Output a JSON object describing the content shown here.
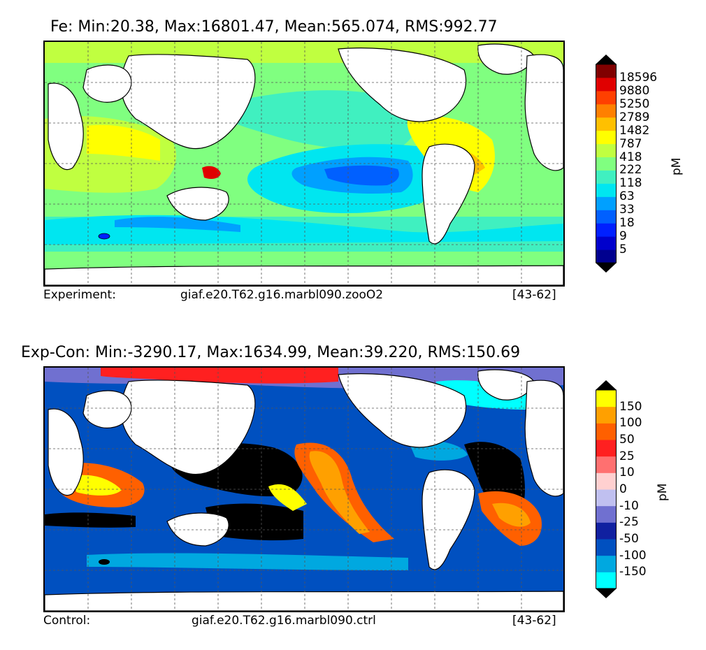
{
  "chart_data": [
    {
      "type": "heatmap",
      "title": "Fe: Min:20.38, Max:16801.47, Mean:565.074, RMS:992.77",
      "footer": {
        "left": "Experiment:",
        "center": "giaf.e20.T62.g16.marbl090.zooO2",
        "right": "[43-62]"
      },
      "colorbar": {
        "unit": "pM",
        "ticks": [
          "5",
          "9",
          "18",
          "33",
          "63",
          "118",
          "222",
          "418",
          "787",
          "1482",
          "2789",
          "5250",
          "9880",
          "18596"
        ],
        "colors": [
          "#00008f",
          "#0000cc",
          "#0020ff",
          "#0060ff",
          "#00a0ff",
          "#00e6f0",
          "#40f0c0",
          "#80ff80",
          "#c0ff40",
          "#ffff00",
          "#ffc000",
          "#ff8000",
          "#ff4000",
          "#e00000",
          "#800000"
        ],
        "extend": "both"
      }
    },
    {
      "type": "heatmap",
      "title": "Exp-Con: Min:-3290.17, Max:1634.99, Mean:39.220, RMS:150.69",
      "footer": {
        "left": "Control:",
        "center": "giaf.e20.T62.g16.marbl090.ctrl",
        "right": "[43-62]"
      },
      "colorbar": {
        "unit": "pM",
        "ticks": [
          "-150",
          "-100",
          "-50",
          "-25",
          "-10",
          "0",
          "10",
          "25",
          "50",
          "100",
          "150"
        ],
        "colors": [
          "#00ffff",
          "#00a8e0",
          "#0050c0",
          "#1020a0",
          "#7070d0",
          "#c0c0f0",
          "#ffd0d0",
          "#ff7070",
          "#ff2020",
          "#ff6000",
          "#ffa000",
          "#ffff00"
        ],
        "extend": "both"
      }
    }
  ]
}
